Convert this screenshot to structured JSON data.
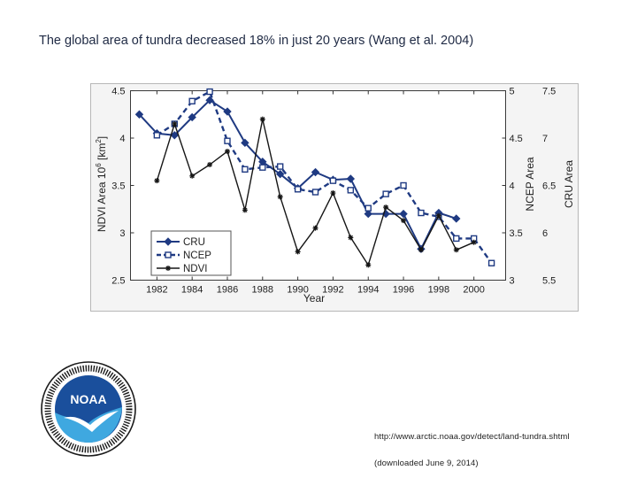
{
  "slide": {
    "title": "The global area of tundra decreased 18% in just 20 years (Wang et al. 2004)",
    "source_url": "http://www.arctic.noaa.gov/detect/land-tundra.shtml",
    "source_date": "(downloaded June 9, 2014)",
    "logo_text": "NOAA"
  },
  "chart_data": {
    "type": "line",
    "title": "",
    "xlabel": "Year",
    "ylabel": "NDVI Area 10^6 [km^2]",
    "ylabel_main": "NDVI Area 10",
    "ylabel_sup1": "6",
    "ylabel_mid": " [km",
    "ylabel_sup2": "2",
    "ylabel_end": "]",
    "y2label": "NCEP Area",
    "y3label": "CRU Area",
    "xlim": [
      1980.5,
      2001.8
    ],
    "ylim": [
      2.5,
      4.5
    ],
    "y2lim": [
      3,
      5
    ],
    "y3lim": [
      5.5,
      7.5
    ],
    "x_ticks": [
      1982,
      1984,
      1986,
      1988,
      1990,
      1992,
      1994,
      1996,
      1998,
      2000
    ],
    "y_ticks": [
      "2.5",
      "3",
      "3.5",
      "4",
      "4.5"
    ],
    "y2_ticks": [
      "3",
      "3.5",
      "4",
      "4.5",
      "5"
    ],
    "y3_ticks": [
      "5.5",
      "6",
      "6.5",
      "7",
      "7.5"
    ],
    "legend_position": "bottom-left",
    "grid": false,
    "series": [
      {
        "name": "CRU",
        "axis": "y3",
        "color": "#1f3a82",
        "marker": "diamond",
        "x": [
          1981,
          1982,
          1983,
          1984,
          1985,
          1986,
          1987,
          1988,
          1989,
          1990,
          1991,
          1992,
          1993,
          1994,
          1995,
          1996,
          1997,
          1998,
          1999
        ],
        "values": [
          7.25,
          7.05,
          7.03,
          7.22,
          7.4,
          7.28,
          6.95,
          6.75,
          6.62,
          6.47,
          6.64,
          6.56,
          6.57,
          6.2,
          6.2,
          6.2,
          5.83,
          6.21,
          6.15
        ]
      },
      {
        "name": "NCEP",
        "axis": "y2",
        "color": "#1f3a82",
        "marker": "square",
        "x": [
          1982,
          1983,
          1984,
          1985,
          1986,
          1987,
          1988,
          1989,
          1990,
          1991,
          1992,
          1993,
          1994,
          1995,
          1996,
          1997,
          1998,
          1999,
          2000,
          2001
        ],
        "values": [
          4.53,
          4.65,
          4.89,
          4.99,
          4.47,
          4.17,
          4.19,
          4.2,
          3.96,
          3.93,
          4.05,
          3.95,
          3.76,
          3.91,
          4.0,
          3.71,
          3.67,
          3.44,
          3.44,
          3.18
        ]
      },
      {
        "name": "NDVI",
        "axis": "y",
        "color": "#151515",
        "marker": "star",
        "x": [
          1982,
          1983,
          1984,
          1985,
          1986,
          1987,
          1988,
          1989,
          1990,
          1991,
          1992,
          1993,
          1994,
          1995,
          1996,
          1997,
          1998,
          1999,
          2000
        ],
        "values": [
          3.55,
          4.15,
          3.6,
          3.72,
          3.86,
          3.24,
          4.2,
          3.38,
          2.8,
          3.05,
          3.42,
          2.95,
          2.66,
          3.27,
          3.13,
          2.82,
          3.18,
          2.82,
          2.9
        ]
      }
    ]
  }
}
